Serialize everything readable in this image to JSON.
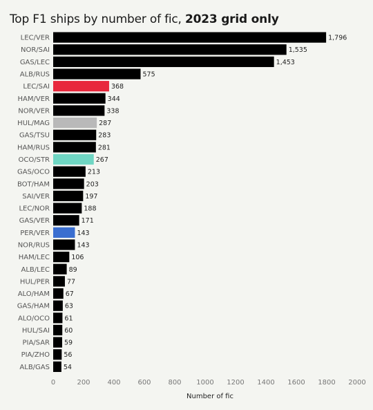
{
  "title": {
    "regular": "Top F1 ships by number of fic,",
    "bold": "2023 grid only"
  },
  "chart_data": {
    "type": "bar",
    "orientation": "horizontal",
    "xlabel": "Number of fic",
    "xlim": [
      0,
      2000
    ],
    "xticks": [
      "0",
      "200",
      "400",
      "600",
      "800",
      "1000",
      "1200",
      "1400",
      "1600",
      "1800",
      "2000"
    ],
    "grid": false,
    "default_color": "#000000",
    "categories": [
      "LEC/VER",
      "NOR/SAI",
      "GAS/LEC",
      "ALB/RUS",
      "LEC/SAI",
      "HAM/VER",
      "NOR/VER",
      "HUL/MAG",
      "GAS/TSU",
      "HAM/RUS",
      "OCO/STR",
      "GAS/OCO",
      "BOT/HAM",
      "SAI/VER",
      "LEC/NOR",
      "GAS/VER",
      "PER/VER",
      "NOR/RUS",
      "HAM/LEC",
      "ALB/LEC",
      "HUL/PER",
      "ALO/HAM",
      "GAS/HAM",
      "ALO/OCO",
      "HUL/SAI",
      "PIA/SAR",
      "PIA/ZHO",
      "ALB/GAS"
    ],
    "values": [
      1796,
      1535,
      1453,
      575,
      368,
      344,
      338,
      287,
      283,
      281,
      267,
      213,
      203,
      197,
      188,
      171,
      143,
      143,
      106,
      89,
      77,
      67,
      63,
      61,
      60,
      59,
      56,
      54
    ],
    "value_labels": [
      "1,796",
      "1,535",
      "1,453",
      "575",
      "368",
      "344",
      "338",
      "287",
      "283",
      "281",
      "267",
      "213",
      "203",
      "197",
      "188",
      "171",
      "143",
      "143",
      "106",
      "89",
      "77",
      "67",
      "63",
      "61",
      "60",
      "59",
      "56",
      "54"
    ],
    "colors": [
      "#000000",
      "#000000",
      "#000000",
      "#000000",
      "#e8283c",
      "#000000",
      "#000000",
      "#b9b9b9",
      "#000000",
      "#000000",
      "#6fd6c3",
      "#000000",
      "#000000",
      "#000000",
      "#000000",
      "#000000",
      "#3a6ed0",
      "#000000",
      "#000000",
      "#000000",
      "#000000",
      "#000000",
      "#000000",
      "#000000",
      "#000000",
      "#000000",
      "#000000",
      "#000000"
    ]
  }
}
